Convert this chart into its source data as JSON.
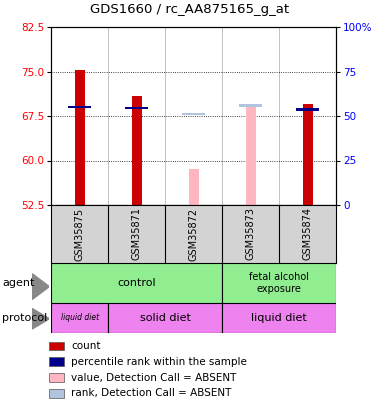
{
  "title": "GDS1660 / rc_AA875165_g_at",
  "samples": [
    "GSM35875",
    "GSM35871",
    "GSM35872",
    "GSM35873",
    "GSM35874"
  ],
  "ylim_left": [
    52.5,
    82.5
  ],
  "ylim_right": [
    0,
    100
  ],
  "yticks_left": [
    52.5,
    60,
    67.5,
    75,
    82.5
  ],
  "yticks_right": [
    0,
    25,
    50,
    75,
    100
  ],
  "ytick_labels_right": [
    "0",
    "25",
    "50",
    "75",
    "100%"
  ],
  "bar_bottom": 52.5,
  "red_bars": {
    "GSM35875": 75.3,
    "GSM35871": 70.8,
    "GSM35872": null,
    "GSM35873": null,
    "GSM35874": 69.6
  },
  "blue_markers": {
    "GSM35875": 68.8,
    "GSM35871": 68.6,
    "GSM35872": null,
    "GSM35873": null,
    "GSM35874": 68.4
  },
  "pink_bars": {
    "GSM35875": null,
    "GSM35871": null,
    "GSM35872": 58.5,
    "GSM35873": 69.6,
    "GSM35874": null
  },
  "lavender_markers": {
    "GSM35875": null,
    "GSM35871": null,
    "GSM35872": 67.6,
    "GSM35873": 69.0,
    "GSM35874": null
  },
  "grid_yticks": [
    60,
    67.5,
    75
  ],
  "red_color": "#cc0000",
  "blue_color": "#00008b",
  "pink_color": "#ffb6c1",
  "lavender_color": "#b0c4de",
  "bg_color": "#d3d3d3",
  "plot_bg": "#ffffff",
  "legend_items": [
    {
      "color": "#cc0000",
      "label": "count"
    },
    {
      "color": "#00008b",
      "label": "percentile rank within the sample"
    },
    {
      "color": "#ffb6c1",
      "label": "value, Detection Call = ABSENT"
    },
    {
      "color": "#b0c4de",
      "label": "rank, Detection Call = ABSENT"
    }
  ]
}
